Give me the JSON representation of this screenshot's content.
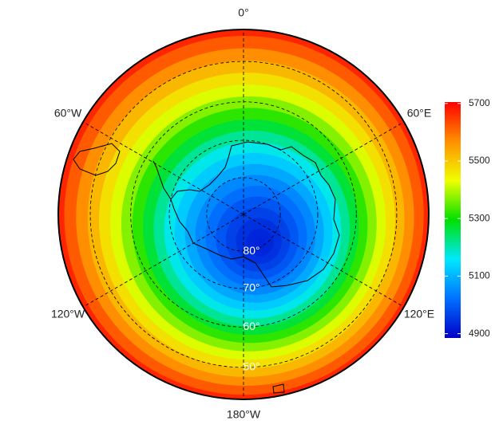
{
  "chart_data": {
    "type": "polar-map",
    "boundary_lat": -42.5,
    "lon_ticks": [
      {
        "value": 0,
        "label": "0°"
      },
      {
        "value": 60,
        "label": "60°E"
      },
      {
        "value": 120,
        "label": "120°E"
      },
      {
        "value": 180,
        "label": "180°W"
      },
      {
        "value": -120,
        "label": "120°W"
      },
      {
        "value": -60,
        "label": "60°W"
      }
    ],
    "lat_ticks": [
      {
        "value": -80,
        "label": "80°"
      },
      {
        "value": -70,
        "label": "70°"
      },
      {
        "value": -60,
        "label": "60°"
      },
      {
        "value": -50,
        "label": "50°"
      }
    ],
    "field": {
      "lat": [
        -90,
        -87.5,
        -85,
        -82.5,
        -80,
        -77.5,
        -75,
        -72.5,
        -70,
        -67.5,
        -65,
        -62.5,
        -60,
        -57.5,
        -55,
        -52.5,
        -50,
        -47.5,
        -45,
        -42.5
      ],
      "values": [
        4925,
        4930,
        4945,
        4965,
        4990,
        5020,
        5050,
        5085,
        5125,
        5170,
        5215,
        5265,
        5320,
        5370,
        5420,
        5470,
        5520,
        5570,
        5620,
        5670
      ]
    },
    "colormap": [
      "#0000c8",
      "#0070ff",
      "#00e8ff",
      "#00e000",
      "#f0ff00",
      "#ff9000",
      "#ff0000"
    ],
    "clim": [
      4885,
      5705
    ],
    "cticks": [
      4900,
      5100,
      5300,
      5500,
      5700
    ]
  }
}
